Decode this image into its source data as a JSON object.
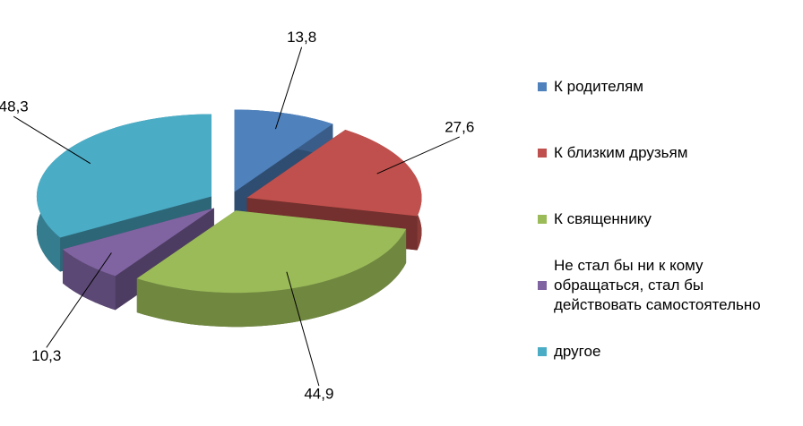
{
  "chart_data": {
    "type": "pie3d",
    "categories": [
      "К родителям",
      "К близким друзьям",
      "К священнику",
      "Не стал бы ни к кому обращаться, стал бы действовать самостоятельно",
      "другое"
    ],
    "values": [
      13.8,
      27.6,
      44.9,
      10.3,
      48.3
    ],
    "value_labels": [
      "13,8",
      "27,6",
      "44,9",
      "10,3",
      "48,3"
    ],
    "colors": [
      "#4f81bd",
      "#c0504d",
      "#9bbb59",
      "#8064a2",
      "#4bacc6"
    ],
    "legend": "right"
  }
}
